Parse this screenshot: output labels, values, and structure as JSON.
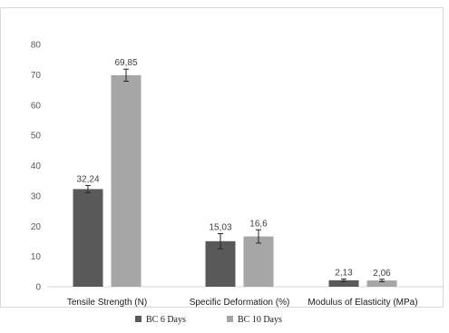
{
  "chart_data": {
    "type": "bar",
    "categories": [
      "Tensile Strength (N)",
      "Specific Deformation (%)",
      "Modulus of Elasticity (MPa)"
    ],
    "series": [
      {
        "name": "BC 6 Days",
        "values": [
          32.24,
          15.03,
          2.13
        ],
        "labels": [
          "32,24",
          "15,03",
          "2,13"
        ],
        "errors": [
          1.2,
          2.5,
          0.4
        ],
        "color": "#595959"
      },
      {
        "name": "BC 10 Days",
        "values": [
          69.85,
          16.6,
          2.06
        ],
        "labels": [
          "69,85",
          "16,6",
          "2,06"
        ],
        "errors": [
          2.0,
          2.2,
          0.4
        ],
        "color": "#a6a6a6"
      }
    ],
    "y_ticks": [
      "0",
      "10",
      "20",
      "30",
      "40",
      "50",
      "60",
      "70",
      "80"
    ],
    "ylim": [
      0,
      80
    ],
    "grid": false,
    "legend": "bottom"
  }
}
